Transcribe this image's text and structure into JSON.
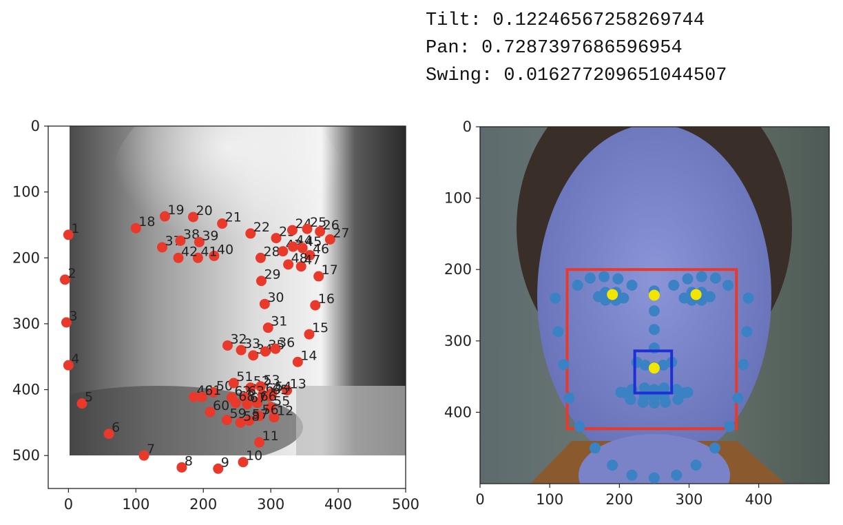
{
  "pose": {
    "tilt_label": "Tilt:",
    "tilt_value": "0.12246567258269744",
    "pan_label": "Pan:",
    "pan_value": "0.7287397686596954",
    "swing_label": "Swing:",
    "swing_value": "0.016277209651044507"
  },
  "chart_data": [
    {
      "type": "scatter",
      "image_background": "grayscale face crop",
      "xlim": [
        -30,
        500
      ],
      "ylim": [
        550,
        0
      ],
      "xticks": [
        0,
        100,
        200,
        300,
        400,
        500
      ],
      "yticks": [
        0,
        100,
        200,
        300,
        400,
        500
      ],
      "xtick_labels": [
        "0",
        "100",
        "200",
        "300",
        "400",
        "500"
      ],
      "ytick_labels": [
        "0",
        "100",
        "200",
        "300",
        "400",
        "500"
      ],
      "point_color": "#e8392b",
      "points": [
        {
          "label": "1",
          "x": 0,
          "y": 165
        },
        {
          "label": "2",
          "x": -5,
          "y": 233
        },
        {
          "label": "3",
          "x": -3,
          "y": 298
        },
        {
          "label": "4",
          "x": 0,
          "y": 363
        },
        {
          "label": "5",
          "x": 20,
          "y": 421
        },
        {
          "label": "6",
          "x": 60,
          "y": 467
        },
        {
          "label": "7",
          "x": 112,
          "y": 500
        },
        {
          "label": "8",
          "x": 168,
          "y": 518
        },
        {
          "label": "9",
          "x": 222,
          "y": 520
        },
        {
          "label": "10",
          "x": 259,
          "y": 510
        },
        {
          "label": "11",
          "x": 283,
          "y": 480
        },
        {
          "label": "12",
          "x": 305,
          "y": 442
        },
        {
          "label": "13",
          "x": 324,
          "y": 401
        },
        {
          "label": "14",
          "x": 340,
          "y": 358
        },
        {
          "label": "15",
          "x": 357,
          "y": 316
        },
        {
          "label": "16",
          "x": 366,
          "y": 272
        },
        {
          "label": "17",
          "x": 371,
          "y": 228
        },
        {
          "label": "18",
          "x": 100,
          "y": 155
        },
        {
          "label": "19",
          "x": 143,
          "y": 137
        },
        {
          "label": "20",
          "x": 185,
          "y": 138
        },
        {
          "label": "21",
          "x": 228,
          "y": 148
        },
        {
          "label": "22",
          "x": 270,
          "y": 163
        },
        {
          "label": "23",
          "x": 308,
          "y": 170
        },
        {
          "label": "24",
          "x": 332,
          "y": 158
        },
        {
          "label": "25",
          "x": 354,
          "y": 156
        },
        {
          "label": "26",
          "x": 373,
          "y": 160
        },
        {
          "label": "27",
          "x": 388,
          "y": 172
        },
        {
          "label": "28",
          "x": 285,
          "y": 200
        },
        {
          "label": "29",
          "x": 286,
          "y": 235
        },
        {
          "label": "30",
          "x": 291,
          "y": 270
        },
        {
          "label": "31",
          "x": 296,
          "y": 306
        },
        {
          "label": "32",
          "x": 236,
          "y": 333
        },
        {
          "label": "33",
          "x": 256,
          "y": 340
        },
        {
          "label": "34",
          "x": 274,
          "y": 348
        },
        {
          "label": "35",
          "x": 292,
          "y": 342
        },
        {
          "label": "36",
          "x": 307,
          "y": 338
        },
        {
          "label": "37",
          "x": 139,
          "y": 184
        },
        {
          "label": "38",
          "x": 166,
          "y": 174
        },
        {
          "label": "39",
          "x": 194,
          "y": 176
        },
        {
          "label": "40",
          "x": 216,
          "y": 197
        },
        {
          "label": "41",
          "x": 192,
          "y": 200
        },
        {
          "label": "42",
          "x": 163,
          "y": 200
        },
        {
          "label": "43",
          "x": 318,
          "y": 190
        },
        {
          "label": "44",
          "x": 333,
          "y": 183
        },
        {
          "label": "45",
          "x": 347,
          "y": 185
        },
        {
          "label": "46",
          "x": 358,
          "y": 196
        },
        {
          "label": "47",
          "x": 345,
          "y": 213
        },
        {
          "label": "48",
          "x": 326,
          "y": 210
        },
        {
          "label": "49",
          "x": 186,
          "y": 411
        },
        {
          "label": "50",
          "x": 215,
          "y": 404
        },
        {
          "label": "51",
          "x": 245,
          "y": 390
        },
        {
          "label": "52",
          "x": 270,
          "y": 397
        },
        {
          "label": "53",
          "x": 285,
          "y": 395
        },
        {
          "label": "54",
          "x": 302,
          "y": 405
        },
        {
          "label": "55",
          "x": 300,
          "y": 427
        },
        {
          "label": "56",
          "x": 283,
          "y": 440
        },
        {
          "label": "57",
          "x": 268,
          "y": 447
        },
        {
          "label": "58",
          "x": 255,
          "y": 450
        },
        {
          "label": "59",
          "x": 235,
          "y": 446
        },
        {
          "label": "60",
          "x": 210,
          "y": 434
        },
        {
          "label": "61",
          "x": 198,
          "y": 411
        },
        {
          "label": "62",
          "x": 242,
          "y": 412
        },
        {
          "label": "63",
          "x": 262,
          "y": 412
        },
        {
          "label": "64",
          "x": 288,
          "y": 408
        },
        {
          "label": "65",
          "x": 298,
          "y": 410
        },
        {
          "label": "66",
          "x": 280,
          "y": 420
        },
        {
          "label": "67",
          "x": 265,
          "y": 422
        },
        {
          "label": "68",
          "x": 248,
          "y": 420
        }
      ]
    },
    {
      "type": "scatter",
      "image_background": "color photo of a man's face",
      "xlim": [
        0,
        500
      ],
      "ylim": [
        500,
        0
      ],
      "xticks": [
        0,
        100,
        200,
        300,
        400
      ],
      "yticks": [
        0,
        100,
        200,
        300,
        400
      ],
      "xtick_labels": [
        "0",
        "100",
        "200",
        "300",
        "400"
      ],
      "ytick_labels": [
        "0",
        "100",
        "200",
        "300",
        "400"
      ],
      "landmark_color": "#3b82c4",
      "landmarks": [
        [
          108,
          240
        ],
        [
          112,
          287
        ],
        [
          120,
          333
        ],
        [
          128,
          380
        ],
        [
          143,
          420
        ],
        [
          165,
          450
        ],
        [
          190,
          474
        ],
        [
          218,
          488
        ],
        [
          250,
          492
        ],
        [
          282,
          488
        ],
        [
          310,
          474
        ],
        [
          337,
          450
        ],
        [
          358,
          420
        ],
        [
          370,
          380
        ],
        [
          378,
          333
        ],
        [
          383,
          287
        ],
        [
          385,
          240
        ],
        [
          140,
          222
        ],
        [
          158,
          212
        ],
        [
          178,
          210
        ],
        [
          198,
          213
        ],
        [
          218,
          222
        ],
        [
          278,
          222
        ],
        [
          298,
          213
        ],
        [
          318,
          210
        ],
        [
          338,
          212
        ],
        [
          356,
          222
        ],
        [
          250,
          230
        ],
        [
          250,
          258
        ],
        [
          250,
          284
        ],
        [
          250,
          310
        ],
        [
          225,
          330
        ],
        [
          237,
          334
        ],
        [
          250,
          337
        ],
        [
          263,
          334
        ],
        [
          275,
          330
        ],
        [
          170,
          238
        ],
        [
          180,
          232
        ],
        [
          195,
          232
        ],
        [
          206,
          240
        ],
        [
          195,
          243
        ],
        [
          180,
          243
        ],
        [
          293,
          240
        ],
        [
          304,
          232
        ],
        [
          318,
          232
        ],
        [
          330,
          238
        ],
        [
          318,
          243
        ],
        [
          304,
          243
        ],
        [
          202,
          372
        ],
        [
          218,
          368
        ],
        [
          236,
          366
        ],
        [
          250,
          368
        ],
        [
          264,
          366
        ],
        [
          282,
          368
        ],
        [
          298,
          372
        ],
        [
          284,
          382
        ],
        [
          266,
          386
        ],
        [
          250,
          387
        ],
        [
          234,
          386
        ],
        [
          216,
          382
        ],
        [
          208,
          373
        ],
        [
          236,
          374
        ],
        [
          250,
          375
        ],
        [
          264,
          374
        ],
        [
          292,
          373
        ],
        [
          264,
          378
        ],
        [
          250,
          379
        ],
        [
          236,
          378
        ]
      ],
      "key_point_color": "#f2e600",
      "key_points": [
        [
          190,
          235
        ],
        [
          250,
          236
        ],
        [
          310,
          235
        ],
        [
          250,
          338
        ]
      ],
      "face_box": {
        "color": "#e8392b",
        "x0": 125,
        "y0": 200,
        "x1": 368,
        "y1": 423
      },
      "nose_box": {
        "color": "#1f2fd6",
        "x0": 222,
        "y0": 314,
        "x1": 275,
        "y1": 373
      }
    }
  ]
}
